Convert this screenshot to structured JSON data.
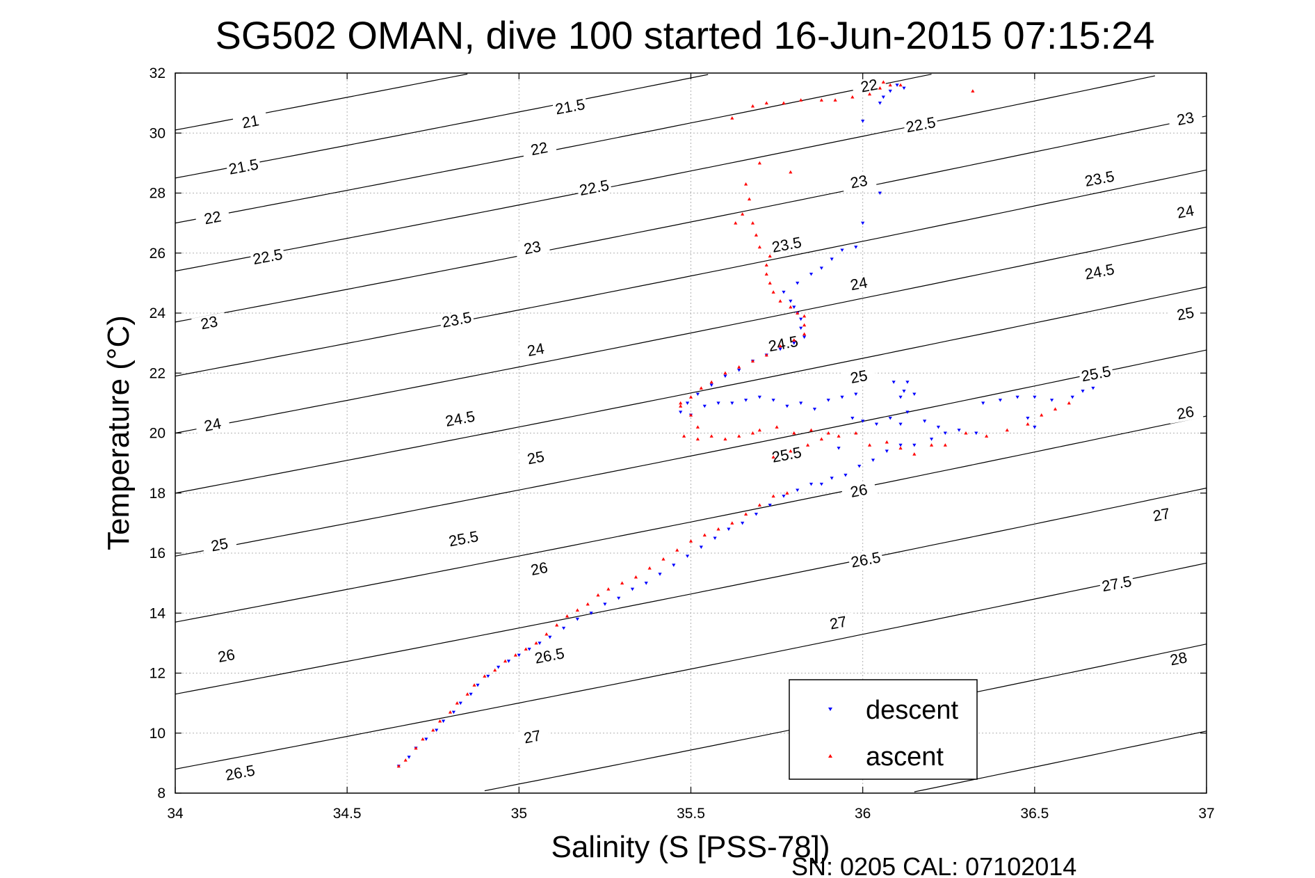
{
  "chart_data": {
    "type": "scatter",
    "title": "SG502 OMAN, dive 100 started 16-Jun-2015 07:15:24",
    "xlabel": "Salinity (S [PSS-78])",
    "ylabel": "Temperature (°C)",
    "footer": "SN: 0205  CAL: 07102014",
    "xlim": [
      34,
      37
    ],
    "ylim": [
      8,
      32
    ],
    "x_ticks": [
      "34",
      "34.5",
      "35",
      "35.5",
      "36",
      "36.5",
      "37"
    ],
    "y_ticks": [
      "8",
      "10",
      "12",
      "14",
      "16",
      "18",
      "20",
      "22",
      "24",
      "26",
      "28",
      "30",
      "32"
    ],
    "grid": true,
    "legend_position": "bottom-right",
    "colors": {
      "descent": "#0000ff",
      "ascent": "#ff0000",
      "contour": "#000000"
    },
    "density_contours": {
      "levels": [
        21,
        21.5,
        22,
        22.5,
        23,
        23.5,
        24,
        24.5,
        25,
        25.5,
        26,
        26.5,
        27,
        27.5,
        28
      ],
      "labels": [
        {
          "text": "21",
          "s": 34.22,
          "t": 30.3
        },
        {
          "text": "21.5",
          "s": 34.2,
          "t": 28.8
        },
        {
          "text": "22",
          "s": 34.11,
          "t": 27.1
        },
        {
          "text": "22.5",
          "s": 34.27,
          "t": 25.8
        },
        {
          "text": "23",
          "s": 34.1,
          "t": 23.6
        },
        {
          "text": "23.5",
          "s": 34.82,
          "t": 23.7
        },
        {
          "text": "24",
          "s": 34.11,
          "t": 20.2
        },
        {
          "text": "24.5",
          "s": 34.83,
          "t": 20.4
        },
        {
          "text": "25",
          "s": 34.13,
          "t": 16.2
        },
        {
          "text": "25.5",
          "s": 34.84,
          "t": 16.4
        },
        {
          "text": "26",
          "s": 34.15,
          "t": 12.5
        },
        {
          "text": "26.5",
          "s": 34.19,
          "t": 8.6
        },
        {
          "text": "21.5",
          "s": 35.15,
          "t": 30.8
        },
        {
          "text": "22",
          "s": 35.06,
          "t": 29.4
        },
        {
          "text": "22.5",
          "s": 35.22,
          "t": 28.1
        },
        {
          "text": "23",
          "s": 35.04,
          "t": 26.1
        },
        {
          "text": "24",
          "s": 35.05,
          "t": 22.7
        },
        {
          "text": "25",
          "s": 35.05,
          "t": 19.1
        },
        {
          "text": "26",
          "s": 35.06,
          "t": 15.4
        },
        {
          "text": "26.5",
          "s": 35.09,
          "t": 12.5
        },
        {
          "text": "27",
          "s": 35.04,
          "t": 9.8
        },
        {
          "text": "22",
          "s": 36.02,
          "t": 31.5
        },
        {
          "text": "22.5",
          "s": 36.17,
          "t": 30.2
        },
        {
          "text": "23",
          "s": 35.99,
          "t": 28.3
        },
        {
          "text": "23.5",
          "s": 35.78,
          "t": 26.2
        },
        {
          "text": "24",
          "s": 35.99,
          "t": 24.9
        },
        {
          "text": "24.5",
          "s": 35.77,
          "t": 22.9
        },
        {
          "text": "25",
          "s": 35.99,
          "t": 21.8
        },
        {
          "text": "25.5",
          "s": 35.78,
          "t": 19.2
        },
        {
          "text": "26",
          "s": 35.99,
          "t": 18.0
        },
        {
          "text": "26.5",
          "s": 36.01,
          "t": 15.7
        },
        {
          "text": "27",
          "s": 35.93,
          "t": 13.6
        },
        {
          "text": "23",
          "s": 36.94,
          "t": 30.4
        },
        {
          "text": "23.5",
          "s": 36.69,
          "t": 28.4
        },
        {
          "text": "24",
          "s": 36.94,
          "t": 27.3
        },
        {
          "text": "24.5",
          "s": 36.69,
          "t": 25.3
        },
        {
          "text": "25",
          "s": 36.94,
          "t": 23.9
        },
        {
          "text": "25.5",
          "s": 36.68,
          "t": 21.9
        },
        {
          "text": "26",
          "s": 36.94,
          "t": 20.6
        },
        {
          "text": "27",
          "s": 36.87,
          "t": 17.2
        },
        {
          "text": "27.5",
          "s": 36.74,
          "t": 14.9
        },
        {
          "text": "28",
          "s": 36.92,
          "t": 12.4
        }
      ]
    },
    "series": [
      {
        "name": "descent",
        "marker": "triangle-down",
        "points": [
          [
            34.65,
            8.9
          ],
          [
            34.68,
            9.2
          ],
          [
            34.7,
            9.5
          ],
          [
            34.73,
            9.8
          ],
          [
            34.76,
            10.1
          ],
          [
            34.78,
            10.4
          ],
          [
            34.81,
            10.7
          ],
          [
            34.83,
            11.0
          ],
          [
            34.86,
            11.3
          ],
          [
            34.88,
            11.6
          ],
          [
            34.91,
            11.9
          ],
          [
            34.94,
            12.2
          ],
          [
            34.97,
            12.4
          ],
          [
            35.0,
            12.6
          ],
          [
            35.03,
            12.8
          ],
          [
            35.06,
            13.0
          ],
          [
            35.09,
            13.2
          ],
          [
            35.13,
            13.5
          ],
          [
            35.17,
            13.8
          ],
          [
            35.21,
            14.0
          ],
          [
            35.25,
            14.3
          ],
          [
            35.29,
            14.5
          ],
          [
            35.33,
            14.8
          ],
          [
            35.37,
            15.0
          ],
          [
            35.41,
            15.3
          ],
          [
            35.45,
            15.6
          ],
          [
            35.49,
            15.9
          ],
          [
            35.53,
            16.2
          ],
          [
            35.57,
            16.5
          ],
          [
            35.61,
            16.8
          ],
          [
            35.65,
            17.0
          ],
          [
            35.69,
            17.3
          ],
          [
            35.73,
            17.6
          ],
          [
            35.77,
            17.9
          ],
          [
            35.81,
            18.1
          ],
          [
            35.85,
            18.3
          ],
          [
            35.88,
            18.3
          ],
          [
            35.91,
            18.5
          ],
          [
            35.95,
            18.6
          ],
          [
            35.99,
            18.9
          ],
          [
            36.03,
            19.1
          ],
          [
            36.07,
            19.4
          ],
          [
            36.11,
            19.6
          ],
          [
            36.15,
            19.6
          ],
          [
            36.2,
            19.8
          ],
          [
            36.24,
            20.0
          ],
          [
            36.28,
            20.1
          ],
          [
            36.33,
            20.0
          ],
          [
            35.93,
            19.5
          ],
          [
            35.97,
            20.5
          ],
          [
            36.0,
            20.4
          ],
          [
            36.04,
            20.3
          ],
          [
            36.08,
            20.5
          ],
          [
            36.11,
            20.3
          ],
          [
            36.13,
            20.7
          ],
          [
            36.18,
            20.4
          ],
          [
            36.22,
            20.2
          ],
          [
            35.5,
            20.6
          ],
          [
            35.54,
            20.9
          ],
          [
            35.58,
            21.0
          ],
          [
            35.62,
            21.0
          ],
          [
            35.66,
            21.1
          ],
          [
            35.7,
            21.2
          ],
          [
            35.74,
            21.1
          ],
          [
            35.78,
            20.9
          ],
          [
            35.82,
            21.0
          ],
          [
            35.86,
            20.8
          ],
          [
            35.9,
            21.1
          ],
          [
            35.94,
            21.2
          ],
          [
            35.98,
            21.3
          ],
          [
            36.09,
            21.7
          ],
          [
            36.12,
            21.4
          ],
          [
            36.13,
            21.7
          ],
          [
            36.15,
            21.3
          ],
          [
            36.11,
            21.2
          ],
          [
            36.35,
            21.0
          ],
          [
            36.4,
            21.1
          ],
          [
            36.45,
            21.2
          ],
          [
            36.5,
            21.2
          ],
          [
            36.55,
            21.1
          ],
          [
            36.61,
            21.2
          ],
          [
            36.64,
            21.4
          ],
          [
            36.67,
            21.5
          ],
          [
            36.48,
            20.5
          ],
          [
            36.5,
            20.2
          ],
          [
            35.47,
            20.7
          ],
          [
            35.49,
            21.0
          ],
          [
            35.52,
            21.3
          ],
          [
            35.56,
            21.6
          ],
          [
            35.6,
            21.9
          ],
          [
            35.64,
            22.1
          ],
          [
            35.68,
            22.4
          ],
          [
            35.72,
            22.6
          ],
          [
            35.76,
            22.8
          ],
          [
            35.8,
            23.0
          ],
          [
            35.83,
            23.2
          ],
          [
            35.82,
            23.5
          ],
          [
            35.82,
            23.8
          ],
          [
            35.81,
            24.0
          ],
          [
            35.8,
            24.2
          ],
          [
            35.79,
            24.4
          ],
          [
            35.77,
            24.7
          ],
          [
            35.81,
            25.0
          ],
          [
            35.85,
            25.3
          ],
          [
            35.88,
            25.5
          ],
          [
            35.91,
            25.8
          ],
          [
            35.94,
            26.1
          ],
          [
            35.98,
            26.2
          ],
          [
            36.0,
            27.0
          ],
          [
            36.05,
            28.0
          ],
          [
            36.0,
            30.4
          ],
          [
            36.05,
            31.0
          ],
          [
            36.06,
            31.2
          ],
          [
            36.08,
            31.4
          ],
          [
            36.1,
            31.6
          ],
          [
            36.12,
            31.5
          ]
        ]
      },
      {
        "name": "ascent",
        "marker": "triangle-up",
        "points": [
          [
            34.65,
            8.9
          ],
          [
            34.67,
            9.1
          ],
          [
            34.7,
            9.5
          ],
          [
            34.72,
            9.8
          ],
          [
            34.75,
            10.1
          ],
          [
            34.77,
            10.4
          ],
          [
            34.8,
            10.7
          ],
          [
            34.82,
            11.0
          ],
          [
            34.85,
            11.3
          ],
          [
            34.87,
            11.6
          ],
          [
            34.9,
            11.9
          ],
          [
            34.93,
            12.1
          ],
          [
            34.96,
            12.4
          ],
          [
            34.99,
            12.6
          ],
          [
            35.02,
            12.8
          ],
          [
            35.05,
            13.0
          ],
          [
            35.08,
            13.3
          ],
          [
            35.11,
            13.6
          ],
          [
            35.14,
            13.9
          ],
          [
            35.17,
            14.1
          ],
          [
            35.2,
            14.3
          ],
          [
            35.23,
            14.6
          ],
          [
            35.26,
            14.8
          ],
          [
            35.3,
            15.0
          ],
          [
            35.34,
            15.2
          ],
          [
            35.38,
            15.5
          ],
          [
            35.42,
            15.8
          ],
          [
            35.46,
            16.1
          ],
          [
            35.5,
            16.4
          ],
          [
            35.54,
            16.6
          ],
          [
            35.58,
            16.8
          ],
          [
            35.62,
            17.0
          ],
          [
            35.66,
            17.3
          ],
          [
            35.7,
            17.6
          ],
          [
            35.74,
            17.9
          ],
          [
            35.78,
            18.0
          ],
          [
            35.74,
            19.2
          ],
          [
            35.79,
            19.4
          ],
          [
            35.84,
            19.6
          ],
          [
            35.88,
            19.8
          ],
          [
            35.93,
            19.9
          ],
          [
            35.98,
            20.0
          ],
          [
            36.02,
            19.6
          ],
          [
            36.07,
            19.7
          ],
          [
            36.11,
            19.5
          ],
          [
            36.15,
            19.3
          ],
          [
            36.2,
            19.6
          ],
          [
            36.24,
            19.6
          ],
          [
            36.3,
            20.0
          ],
          [
            36.36,
            19.9
          ],
          [
            36.42,
            20.1
          ],
          [
            36.48,
            20.3
          ],
          [
            36.52,
            20.6
          ],
          [
            36.56,
            20.8
          ],
          [
            36.6,
            21.0
          ],
          [
            35.7,
            20.1
          ],
          [
            35.75,
            20.2
          ],
          [
            35.8,
            20.0
          ],
          [
            35.85,
            20.1
          ],
          [
            35.9,
            20.0
          ],
          [
            35.48,
            19.9
          ],
          [
            35.52,
            19.8
          ],
          [
            35.56,
            19.9
          ],
          [
            35.6,
            19.8
          ],
          [
            35.64,
            19.9
          ],
          [
            35.68,
            20.0
          ],
          [
            35.47,
            21.0
          ],
          [
            35.5,
            20.6
          ],
          [
            35.52,
            20.2
          ],
          [
            35.47,
            20.9
          ],
          [
            35.5,
            21.2
          ],
          [
            35.53,
            21.5
          ],
          [
            35.56,
            21.7
          ],
          [
            35.6,
            22.0
          ],
          [
            35.64,
            22.2
          ],
          [
            35.68,
            22.4
          ],
          [
            35.72,
            22.6
          ],
          [
            35.76,
            22.9
          ],
          [
            35.8,
            23.1
          ],
          [
            35.83,
            23.3
          ],
          [
            35.83,
            23.6
          ],
          [
            35.83,
            23.9
          ],
          [
            35.81,
            24.0
          ],
          [
            35.79,
            24.2
          ],
          [
            35.76,
            24.4
          ],
          [
            35.74,
            24.7
          ],
          [
            35.73,
            25.0
          ],
          [
            35.72,
            25.3
          ],
          [
            35.72,
            25.6
          ],
          [
            35.73,
            25.9
          ],
          [
            35.7,
            26.2
          ],
          [
            35.69,
            26.6
          ],
          [
            35.68,
            27.0
          ],
          [
            35.63,
            27.0
          ],
          [
            35.65,
            27.3
          ],
          [
            35.67,
            27.8
          ],
          [
            35.66,
            28.3
          ],
          [
            35.7,
            29.0
          ],
          [
            35.79,
            28.7
          ],
          [
            35.62,
            30.5
          ],
          [
            35.68,
            30.9
          ],
          [
            35.72,
            31.0
          ],
          [
            35.77,
            31.0
          ],
          [
            35.82,
            31.1
          ],
          [
            35.88,
            31.1
          ],
          [
            35.92,
            31.1
          ],
          [
            35.97,
            31.2
          ],
          [
            36.02,
            31.3
          ],
          [
            36.05,
            31.5
          ],
          [
            36.06,
            31.7
          ],
          [
            36.08,
            31.6
          ],
          [
            36.11,
            31.6
          ],
          [
            36.32,
            31.4
          ]
        ]
      }
    ]
  }
}
